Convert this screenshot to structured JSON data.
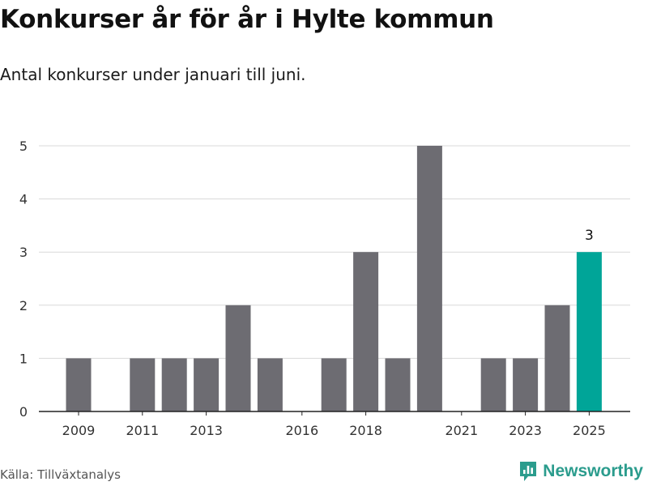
{
  "title": "Konkurser år för år i Hylte kommun",
  "subtitle": "Antal konkurser under januari till juni.",
  "source": "Källa: Tillväxtanalys",
  "brand": {
    "name": "Newsworthy",
    "color": "#2b9c8d",
    "icon": "newsworthy-logo-icon"
  },
  "chart_data": {
    "type": "bar",
    "categories": [
      "2009",
      "2010",
      "2011",
      "2012",
      "2013",
      "2014",
      "2015",
      "2016",
      "2017",
      "2018",
      "2019",
      "2020",
      "2021",
      "2022",
      "2023",
      "2024",
      "2025"
    ],
    "values": [
      1,
      0,
      1,
      1,
      1,
      2,
      1,
      0,
      1,
      3,
      1,
      5,
      0,
      1,
      1,
      2,
      3
    ],
    "x_tick_labels": [
      "2009",
      "2011",
      "2013",
      "2016",
      "2018",
      "2021",
      "2023",
      "2025"
    ],
    "y_ticks": [
      0,
      1,
      2,
      3,
      4,
      5
    ],
    "ylim": [
      0,
      5
    ],
    "grid": true,
    "bar_color": "#6d6c72",
    "highlight": {
      "category": "2025",
      "color": "#00a598",
      "label": "3"
    },
    "xlabel": "",
    "ylabel": ""
  }
}
